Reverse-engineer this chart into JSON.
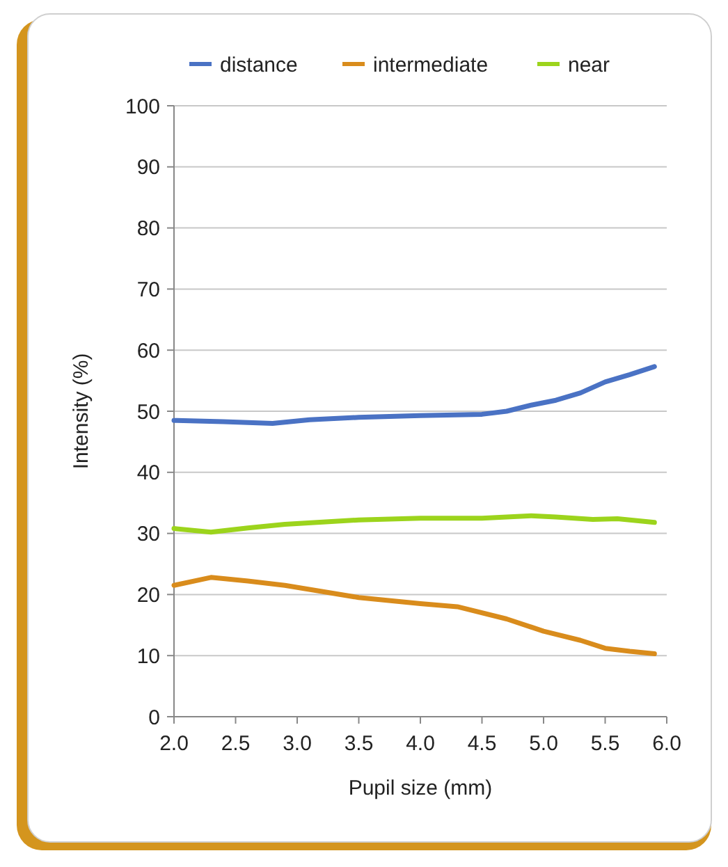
{
  "chart_data": {
    "type": "line",
    "xlabel": "Pupil size (mm)",
    "ylabel": "Intensity (%)",
    "xlim": [
      2,
      6
    ],
    "ylim": [
      0,
      100
    ],
    "xticks": [
      {
        "value": 2,
        "label": "2.0"
      },
      {
        "value": 2.5,
        "label": "2.5"
      },
      {
        "value": 3,
        "label": "3.0"
      },
      {
        "value": 3.5,
        "label": "3.5"
      },
      {
        "value": 4,
        "label": "4.0"
      },
      {
        "value": 4.5,
        "label": "4.5"
      },
      {
        "value": 5,
        "label": "5.0"
      },
      {
        "value": 5.5,
        "label": "5.5"
      },
      {
        "value": 6,
        "label": "6.0"
      }
    ],
    "yticks": [
      0,
      10,
      20,
      30,
      40,
      50,
      60,
      70,
      80,
      90,
      100
    ],
    "grid": "y",
    "legend": "top",
    "line_style": "solid",
    "marker": "none",
    "series": [
      {
        "name": "distance",
        "color": "#4a72c4",
        "x": [
          2,
          2.4,
          2.8,
          3.1,
          3.5,
          4,
          4.5,
          4.7,
          4.9,
          5.1,
          5.3,
          5.5,
          5.7,
          5.9
        ],
        "values": [
          48.5,
          48.3,
          48,
          48.6,
          49,
          49.3,
          49.5,
          50,
          51,
          51.8,
          53,
          54.8,
          56,
          57.3
        ]
      },
      {
        "name": "intermediate",
        "color": "#d98c1c",
        "x": [
          2,
          2.3,
          2.6,
          2.9,
          3.2,
          3.5,
          4,
          4.3,
          4.7,
          5,
          5.3,
          5.5,
          5.7,
          5.9
        ],
        "values": [
          21.5,
          22.8,
          22.2,
          21.5,
          20.5,
          19.5,
          18.5,
          18,
          16,
          14,
          12.5,
          11.2,
          10.7,
          10.3
        ]
      },
      {
        "name": "near",
        "color": "#9cd41c",
        "x": [
          2,
          2.3,
          2.6,
          2.9,
          3.5,
          4,
          4.5,
          4.9,
          5.1,
          5.4,
          5.6,
          5.9
        ],
        "values": [
          30.8,
          30.2,
          30.9,
          31.5,
          32.2,
          32.5,
          32.5,
          32.9,
          32.7,
          32.3,
          32.4,
          31.8
        ]
      }
    ]
  }
}
